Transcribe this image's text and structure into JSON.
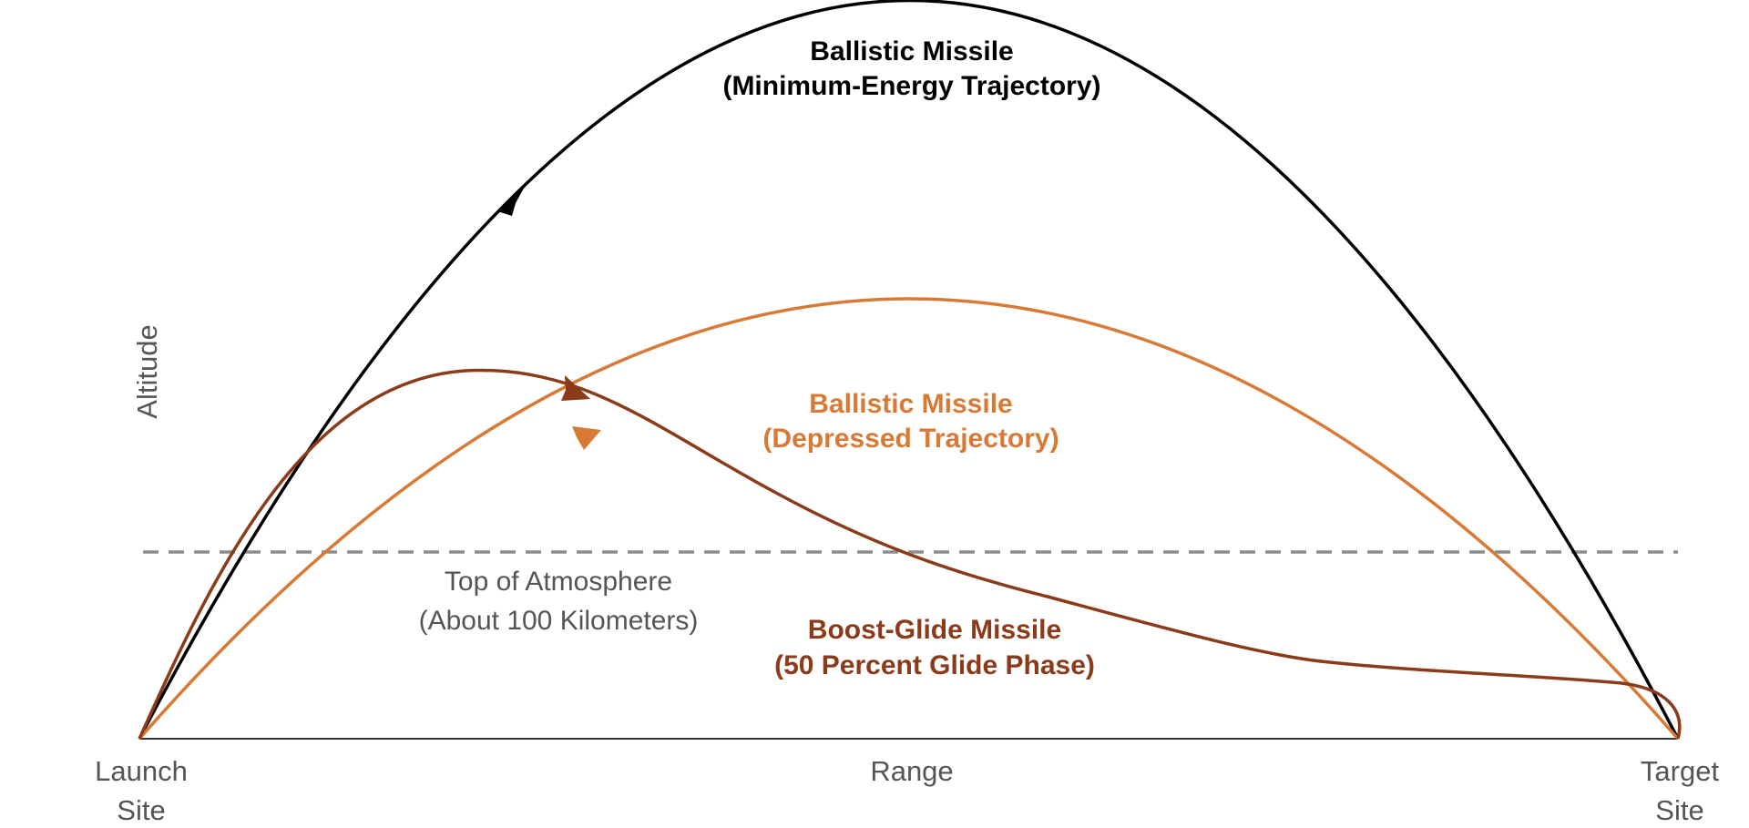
{
  "diagram": {
    "axis_label_y": "Altitude",
    "axis_label_x": "Range",
    "launch_label": [
      "Launch",
      "Site"
    ],
    "target_label": [
      "Target",
      "Site"
    ],
    "atmosphere_label": [
      "Top of Atmosphere",
      "(About 100 Kilometers)"
    ],
    "trajectories": [
      {
        "key": "minimum_energy",
        "label": [
          "Ballistic Missile",
          "(Minimum-Energy Trajectory)"
        ],
        "color": "#000000"
      },
      {
        "key": "depressed",
        "label": [
          "Ballistic Missile",
          "(Depressed Trajectory)"
        ],
        "color": "#d87a35"
      },
      {
        "key": "boost_glide",
        "label": [
          "Boost-Glide Missile",
          "(50 Percent Glide Phase)"
        ],
        "color": "#8b3a1a"
      }
    ],
    "colors": {
      "axis": "#333333",
      "atmosphere_line": "#8c8c8c",
      "secondary_text": "#555555"
    }
  }
}
